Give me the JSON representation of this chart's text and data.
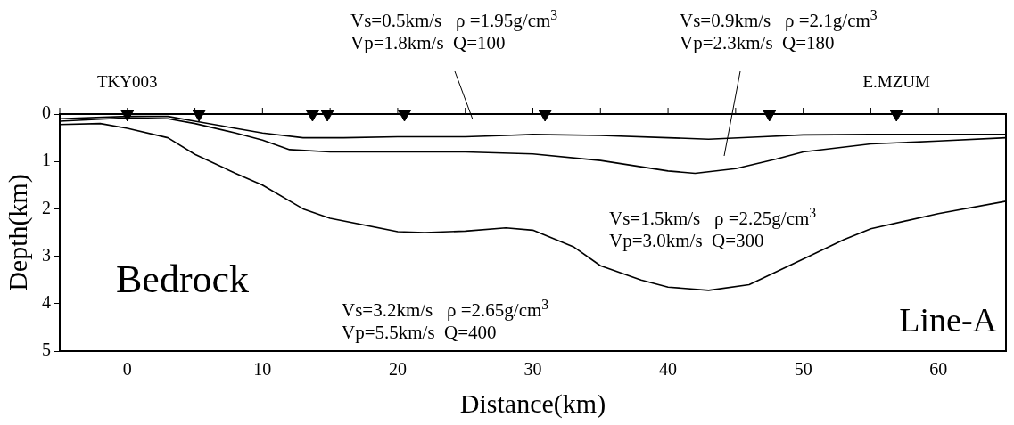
{
  "chart_data": {
    "type": "line",
    "xlabel": "Distance(km)",
    "ylabel": "Depth(km)",
    "xlim": [
      -5,
      65
    ],
    "ylim": [
      5,
      0
    ],
    "xticks": [
      {
        "value": -5,
        "label": null
      },
      0,
      {
        "value": 5,
        "label": null
      },
      10,
      {
        "value": 15,
        "label": null
      },
      20,
      {
        "value": 25,
        "label": null
      },
      30,
      {
        "value": 35,
        "label": null
      },
      40,
      {
        "value": 45,
        "label": null
      },
      50,
      {
        "value": 55,
        "label": null
      },
      60
    ],
    "yticks": [
      0,
      1,
      2,
      3,
      4,
      5
    ],
    "grid": false,
    "legend": false,
    "line_style": "solid",
    "marker": "none",
    "series": [
      {
        "color": "#000000",
        "x": [
          -5,
          0,
          3,
          5,
          8,
          10,
          13,
          16,
          20,
          25,
          28,
          30,
          35,
          40,
          43,
          47,
          50,
          55,
          60,
          65
        ],
        "values": [
          0.1,
          0.05,
          0.05,
          0.15,
          0.3,
          0.4,
          0.5,
          0.5,
          0.48,
          0.48,
          0.45,
          0.43,
          0.45,
          0.5,
          0.53,
          0.48,
          0.44,
          0.43,
          0.43,
          0.43
        ]
      },
      {
        "color": "#000000",
        "x": [
          -5,
          0,
          3,
          5,
          8,
          10,
          12,
          15,
          20,
          25,
          30,
          35,
          40,
          42,
          45,
          48,
          50,
          55,
          60,
          65
        ],
        "values": [
          0.15,
          0.08,
          0.1,
          0.2,
          0.4,
          0.55,
          0.75,
          0.8,
          0.8,
          0.8,
          0.84,
          0.98,
          1.2,
          1.25,
          1.15,
          0.95,
          0.8,
          0.63,
          0.57,
          0.5
        ]
      },
      {
        "color": "#000000",
        "x": [
          -5,
          -2,
          0,
          3,
          5,
          8,
          10,
          13,
          15,
          20,
          22,
          25,
          28,
          30,
          33,
          35,
          38,
          40,
          43,
          46,
          50,
          53,
          55,
          60,
          65
        ],
        "values": [
          0.22,
          0.2,
          0.3,
          0.5,
          0.85,
          1.25,
          1.5,
          2.0,
          2.2,
          2.48,
          2.5,
          2.47,
          2.4,
          2.45,
          2.8,
          3.2,
          3.5,
          3.65,
          3.72,
          3.6,
          3.06,
          2.65,
          2.42,
          2.1,
          1.84
        ]
      },
      {
        "type": "scatter",
        "marker": "triangle",
        "color": "#000000",
        "x": [
          0,
          5.3,
          13.7,
          14.8,
          20.5,
          30.9,
          47.5,
          56.9
        ],
        "values": [
          0,
          0,
          0,
          0,
          0,
          0,
          0,
          0
        ]
      }
    ],
    "annotations": [
      {
        "text": "TKY003",
        "x": 0,
        "y": 0
      },
      {
        "text": "E.MZUM",
        "x": 56.9,
        "y": 0
      },
      "Vs=0.5km/s   ρ =1.95g/cm$^{3}$\nVp=1.8km/s  Q=100",
      "Vs=0.9km/s   ρ =2.1g/cm$^{3}$\nVp=2.3km/s  Q=180",
      "Vs=1.5km/s   ρ =2.25g/cm$^{3}$\nVp=3.0km/s  Q=300",
      "Vs=3.2km/s   ρ =2.65g/cm$^{3}$\nVp=5.5km/s  Q=400",
      "Bedrock",
      "Line-A"
    ]
  }
}
